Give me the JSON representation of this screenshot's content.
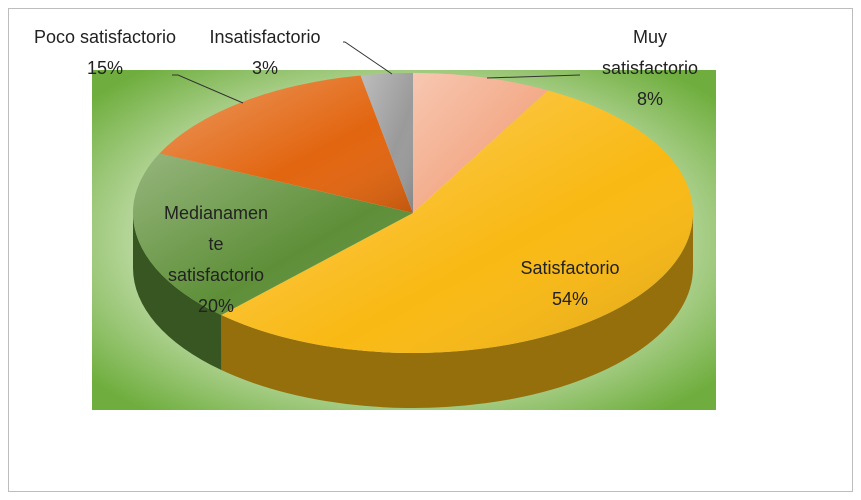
{
  "chart_data": {
    "type": "pie3d",
    "categories": [
      "Muy satisfactorio",
      "Satisfactorio",
      "Medianamente satisfactorio",
      "Poco satisfactorio",
      "Insatisfactorio"
    ],
    "values": [
      8,
      54,
      20,
      15,
      3
    ],
    "value_labels": [
      "8%",
      "54%",
      "20%",
      "15%",
      "3%"
    ],
    "colors": [
      "#f3a987",
      "#f9b914",
      "#5e8f38",
      "#e2650f",
      "#9a9a9a"
    ]
  }
}
